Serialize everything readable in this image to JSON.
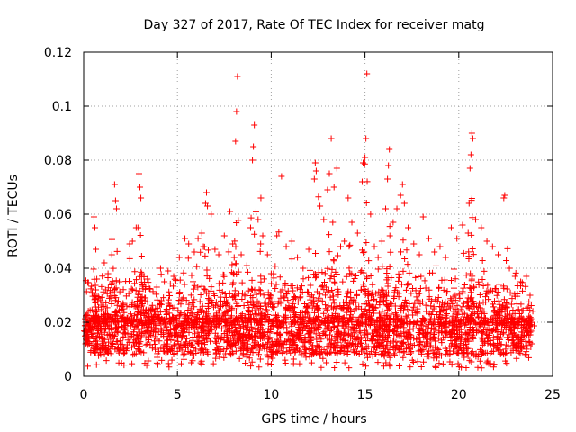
{
  "chart_data": {
    "type": "scatter",
    "title": "Day 327 of 2017, Rate Of TEC Index for receiver matg",
    "xlabel": "GPS time / hours",
    "ylabel": "ROTI / TECUs",
    "xlim": [
      0,
      25
    ],
    "ylim": [
      0,
      0.12
    ],
    "xticks": [
      0,
      5,
      10,
      15,
      20,
      25
    ],
    "yticks": [
      0,
      0.02,
      0.04,
      0.06,
      0.08,
      0.1,
      0.12
    ],
    "xtick_labels": [
      "0",
      "5",
      "10",
      "15",
      "20",
      "25"
    ],
    "ytick_labels": [
      "0",
      "0.02",
      "0.04",
      "0.06",
      "0.08",
      "0.1",
      "0.12"
    ],
    "grid": true,
    "marker": "+",
    "color": "#ff0000",
    "points": [
      [
        0.1,
        0.012
      ],
      [
        0.3,
        0.02
      ],
      [
        0.45,
        0.031
      ],
      [
        0.55,
        0.059
      ],
      [
        0.6,
        0.055
      ],
      [
        0.65,
        0.047
      ],
      [
        0.7,
        0.036
      ],
      [
        0.9,
        0.028
      ],
      [
        1.1,
        0.042
      ],
      [
        1.3,
        0.038
      ],
      [
        1.5,
        0.045
      ],
      [
        1.65,
        0.071
      ],
      [
        1.7,
        0.065
      ],
      [
        1.75,
        0.062
      ],
      [
        1.9,
        0.035
      ],
      [
        2.1,
        0.027
      ],
      [
        2.3,
        0.026
      ],
      [
        2.45,
        0.049
      ],
      [
        2.6,
        0.05
      ],
      [
        2.8,
        0.055
      ],
      [
        2.95,
        0.075
      ],
      [
        3.0,
        0.07
      ],
      [
        3.05,
        0.066
      ],
      [
        3.1,
        0.038
      ],
      [
        3.4,
        0.036
      ],
      [
        3.6,
        0.025
      ],
      [
        3.9,
        0.033
      ],
      [
        4.1,
        0.04
      ],
      [
        4.3,
        0.035
      ],
      [
        4.5,
        0.039
      ],
      [
        4.8,
        0.037
      ],
      [
        5.1,
        0.044
      ],
      [
        5.4,
        0.051
      ],
      [
        5.6,
        0.049
      ],
      [
        5.9,
        0.046
      ],
      [
        6.1,
        0.051
      ],
      [
        6.3,
        0.053
      ],
      [
        6.5,
        0.064
      ],
      [
        6.55,
        0.068
      ],
      [
        6.6,
        0.063
      ],
      [
        6.8,
        0.06
      ],
      [
        7.0,
        0.047
      ],
      [
        7.2,
        0.045
      ],
      [
        7.5,
        0.052
      ],
      [
        7.8,
        0.061
      ],
      [
        7.95,
        0.049
      ],
      [
        8.1,
        0.087
      ],
      [
        8.15,
        0.098
      ],
      [
        8.2,
        0.111
      ],
      [
        8.4,
        0.045
      ],
      [
        8.7,
        0.041
      ],
      [
        8.9,
        0.055
      ],
      [
        9.0,
        0.08
      ],
      [
        9.05,
        0.085
      ],
      [
        9.1,
        0.093
      ],
      [
        9.3,
        0.058
      ],
      [
        9.45,
        0.066
      ],
      [
        9.55,
        0.052
      ],
      [
        9.8,
        0.045
      ],
      [
        10.0,
        0.038
      ],
      [
        10.3,
        0.052
      ],
      [
        10.55,
        0.074
      ],
      [
        10.8,
        0.048
      ],
      [
        11.1,
        0.05
      ],
      [
        11.4,
        0.044
      ],
      [
        11.7,
        0.04
      ],
      [
        12.0,
        0.047
      ],
      [
        12.3,
        0.073
      ],
      [
        12.35,
        0.079
      ],
      [
        12.4,
        0.076
      ],
      [
        12.6,
        0.063
      ],
      [
        12.8,
        0.058
      ],
      [
        13.0,
        0.069
      ],
      [
        13.1,
        0.075
      ],
      [
        13.2,
        0.088
      ],
      [
        13.35,
        0.07
      ],
      [
        13.5,
        0.077
      ],
      [
        13.7,
        0.048
      ],
      [
        13.9,
        0.05
      ],
      [
        14.1,
        0.066
      ],
      [
        14.3,
        0.057
      ],
      [
        14.6,
        0.053
      ],
      [
        14.85,
        0.072
      ],
      [
        14.9,
        0.079
      ],
      [
        15.0,
        0.081
      ],
      [
        15.05,
        0.088
      ],
      [
        15.1,
        0.112
      ],
      [
        15.3,
        0.06
      ],
      [
        15.5,
        0.048
      ],
      [
        15.7,
        0.044
      ],
      [
        15.9,
        0.05
      ],
      [
        16.1,
        0.062
      ],
      [
        16.2,
        0.073
      ],
      [
        16.25,
        0.078
      ],
      [
        16.3,
        0.084
      ],
      [
        16.5,
        0.057
      ],
      [
        16.7,
        0.062
      ],
      [
        16.9,
        0.067
      ],
      [
        17.0,
        0.071
      ],
      [
        17.1,
        0.064
      ],
      [
        17.3,
        0.055
      ],
      [
        17.6,
        0.049
      ],
      [
        17.9,
        0.045
      ],
      [
        18.1,
        0.059
      ],
      [
        18.4,
        0.051
      ],
      [
        18.7,
        0.046
      ],
      [
        19.0,
        0.048
      ],
      [
        19.3,
        0.044
      ],
      [
        19.6,
        0.055
      ],
      [
        19.9,
        0.051
      ],
      [
        20.2,
        0.056
      ],
      [
        20.5,
        0.053
      ],
      [
        20.55,
        0.064
      ],
      [
        20.6,
        0.077
      ],
      [
        20.65,
        0.082
      ],
      [
        20.7,
        0.09
      ],
      [
        20.75,
        0.088
      ],
      [
        20.9,
        0.058
      ],
      [
        21.2,
        0.055
      ],
      [
        21.5,
        0.05
      ],
      [
        21.8,
        0.048
      ],
      [
        22.1,
        0.045
      ],
      [
        22.4,
        0.066
      ],
      [
        22.45,
        0.067
      ],
      [
        22.7,
        0.04
      ],
      [
        23.0,
        0.037
      ],
      [
        23.3,
        0.035
      ],
      [
        23.6,
        0.037
      ],
      [
        23.8,
        0.03
      ],
      [
        23.9,
        0.012
      ]
    ]
  }
}
